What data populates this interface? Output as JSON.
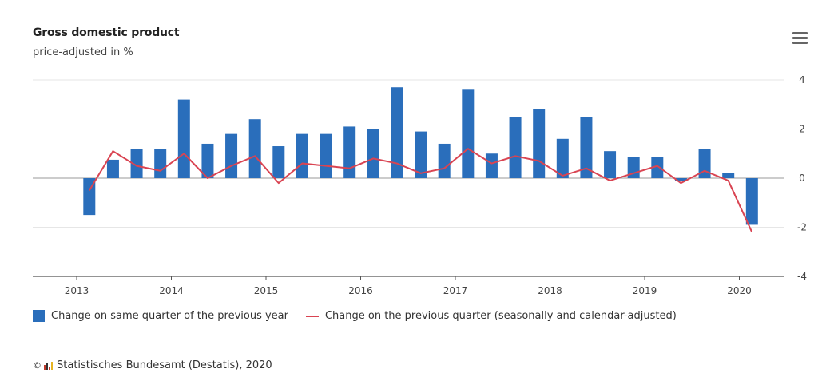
{
  "header": {
    "title": "Gross domestic product",
    "subtitle": "price-adjusted in %",
    "menu_icon": "hamburger-menu-icon"
  },
  "legend": {
    "items": [
      {
        "label": "Change on same quarter of the previous year",
        "symbol": "square",
        "color": "#2a6ebb"
      },
      {
        "label": "Change on the previous quarter (seasonally and calendar-adjusted)",
        "symbol": "line",
        "color": "#d94452"
      }
    ]
  },
  "credits": {
    "copyright_symbol": "©",
    "text": "Statistisches Bundesamt (Destatis), 2020"
  },
  "chart_data": {
    "type": "bar+line",
    "title": "Gross domestic product",
    "subtitle": "price-adjusted in %",
    "xlabel": "",
    "ylabel": "",
    "y_axis_side": "right",
    "ylim": [
      -4,
      4
    ],
    "yticks": [
      4,
      2,
      0,
      -2,
      -4
    ],
    "xticks": [
      "2013",
      "2014",
      "2015",
      "2016",
      "2017",
      "2018",
      "2019",
      "2020"
    ],
    "grid": true,
    "legend_position": "bottom-left",
    "categories": [
      "2013Q1",
      "2013Q2",
      "2013Q3",
      "2013Q4",
      "2014Q1",
      "2014Q2",
      "2014Q3",
      "2014Q4",
      "2015Q1",
      "2015Q2",
      "2015Q3",
      "2015Q4",
      "2016Q1",
      "2016Q2",
      "2016Q3",
      "2016Q4",
      "2017Q1",
      "2017Q2",
      "2017Q3",
      "2017Q4",
      "2018Q1",
      "2018Q2",
      "2018Q3",
      "2018Q4",
      "2019Q1",
      "2019Q2",
      "2019Q3",
      "2019Q4",
      "2020Q1"
    ],
    "series": [
      {
        "name": "Change on same quarter of the previous year",
        "type": "bar",
        "color": "#2a6ebb",
        "values": [
          -1.5,
          0.75,
          1.2,
          1.2,
          3.2,
          1.4,
          1.8,
          2.4,
          1.3,
          1.8,
          1.8,
          2.1,
          2.0,
          3.7,
          1.9,
          1.4,
          3.6,
          1.0,
          2.5,
          2.8,
          1.6,
          2.5,
          1.1,
          0.85,
          0.85,
          -0.1,
          1.2,
          0.2,
          -1.9
        ]
      },
      {
        "name": "Change on the previous quarter (seasonally and calendar-adjusted)",
        "type": "line",
        "color": "#d94452",
        "values": [
          -0.5,
          1.1,
          0.5,
          0.3,
          1.0,
          0.0,
          0.5,
          0.9,
          -0.2,
          0.6,
          0.5,
          0.4,
          0.8,
          0.6,
          0.2,
          0.4,
          1.2,
          0.6,
          0.9,
          0.7,
          0.1,
          0.4,
          -0.1,
          0.2,
          0.5,
          -0.2,
          0.3,
          -0.1,
          -2.2
        ]
      }
    ]
  }
}
